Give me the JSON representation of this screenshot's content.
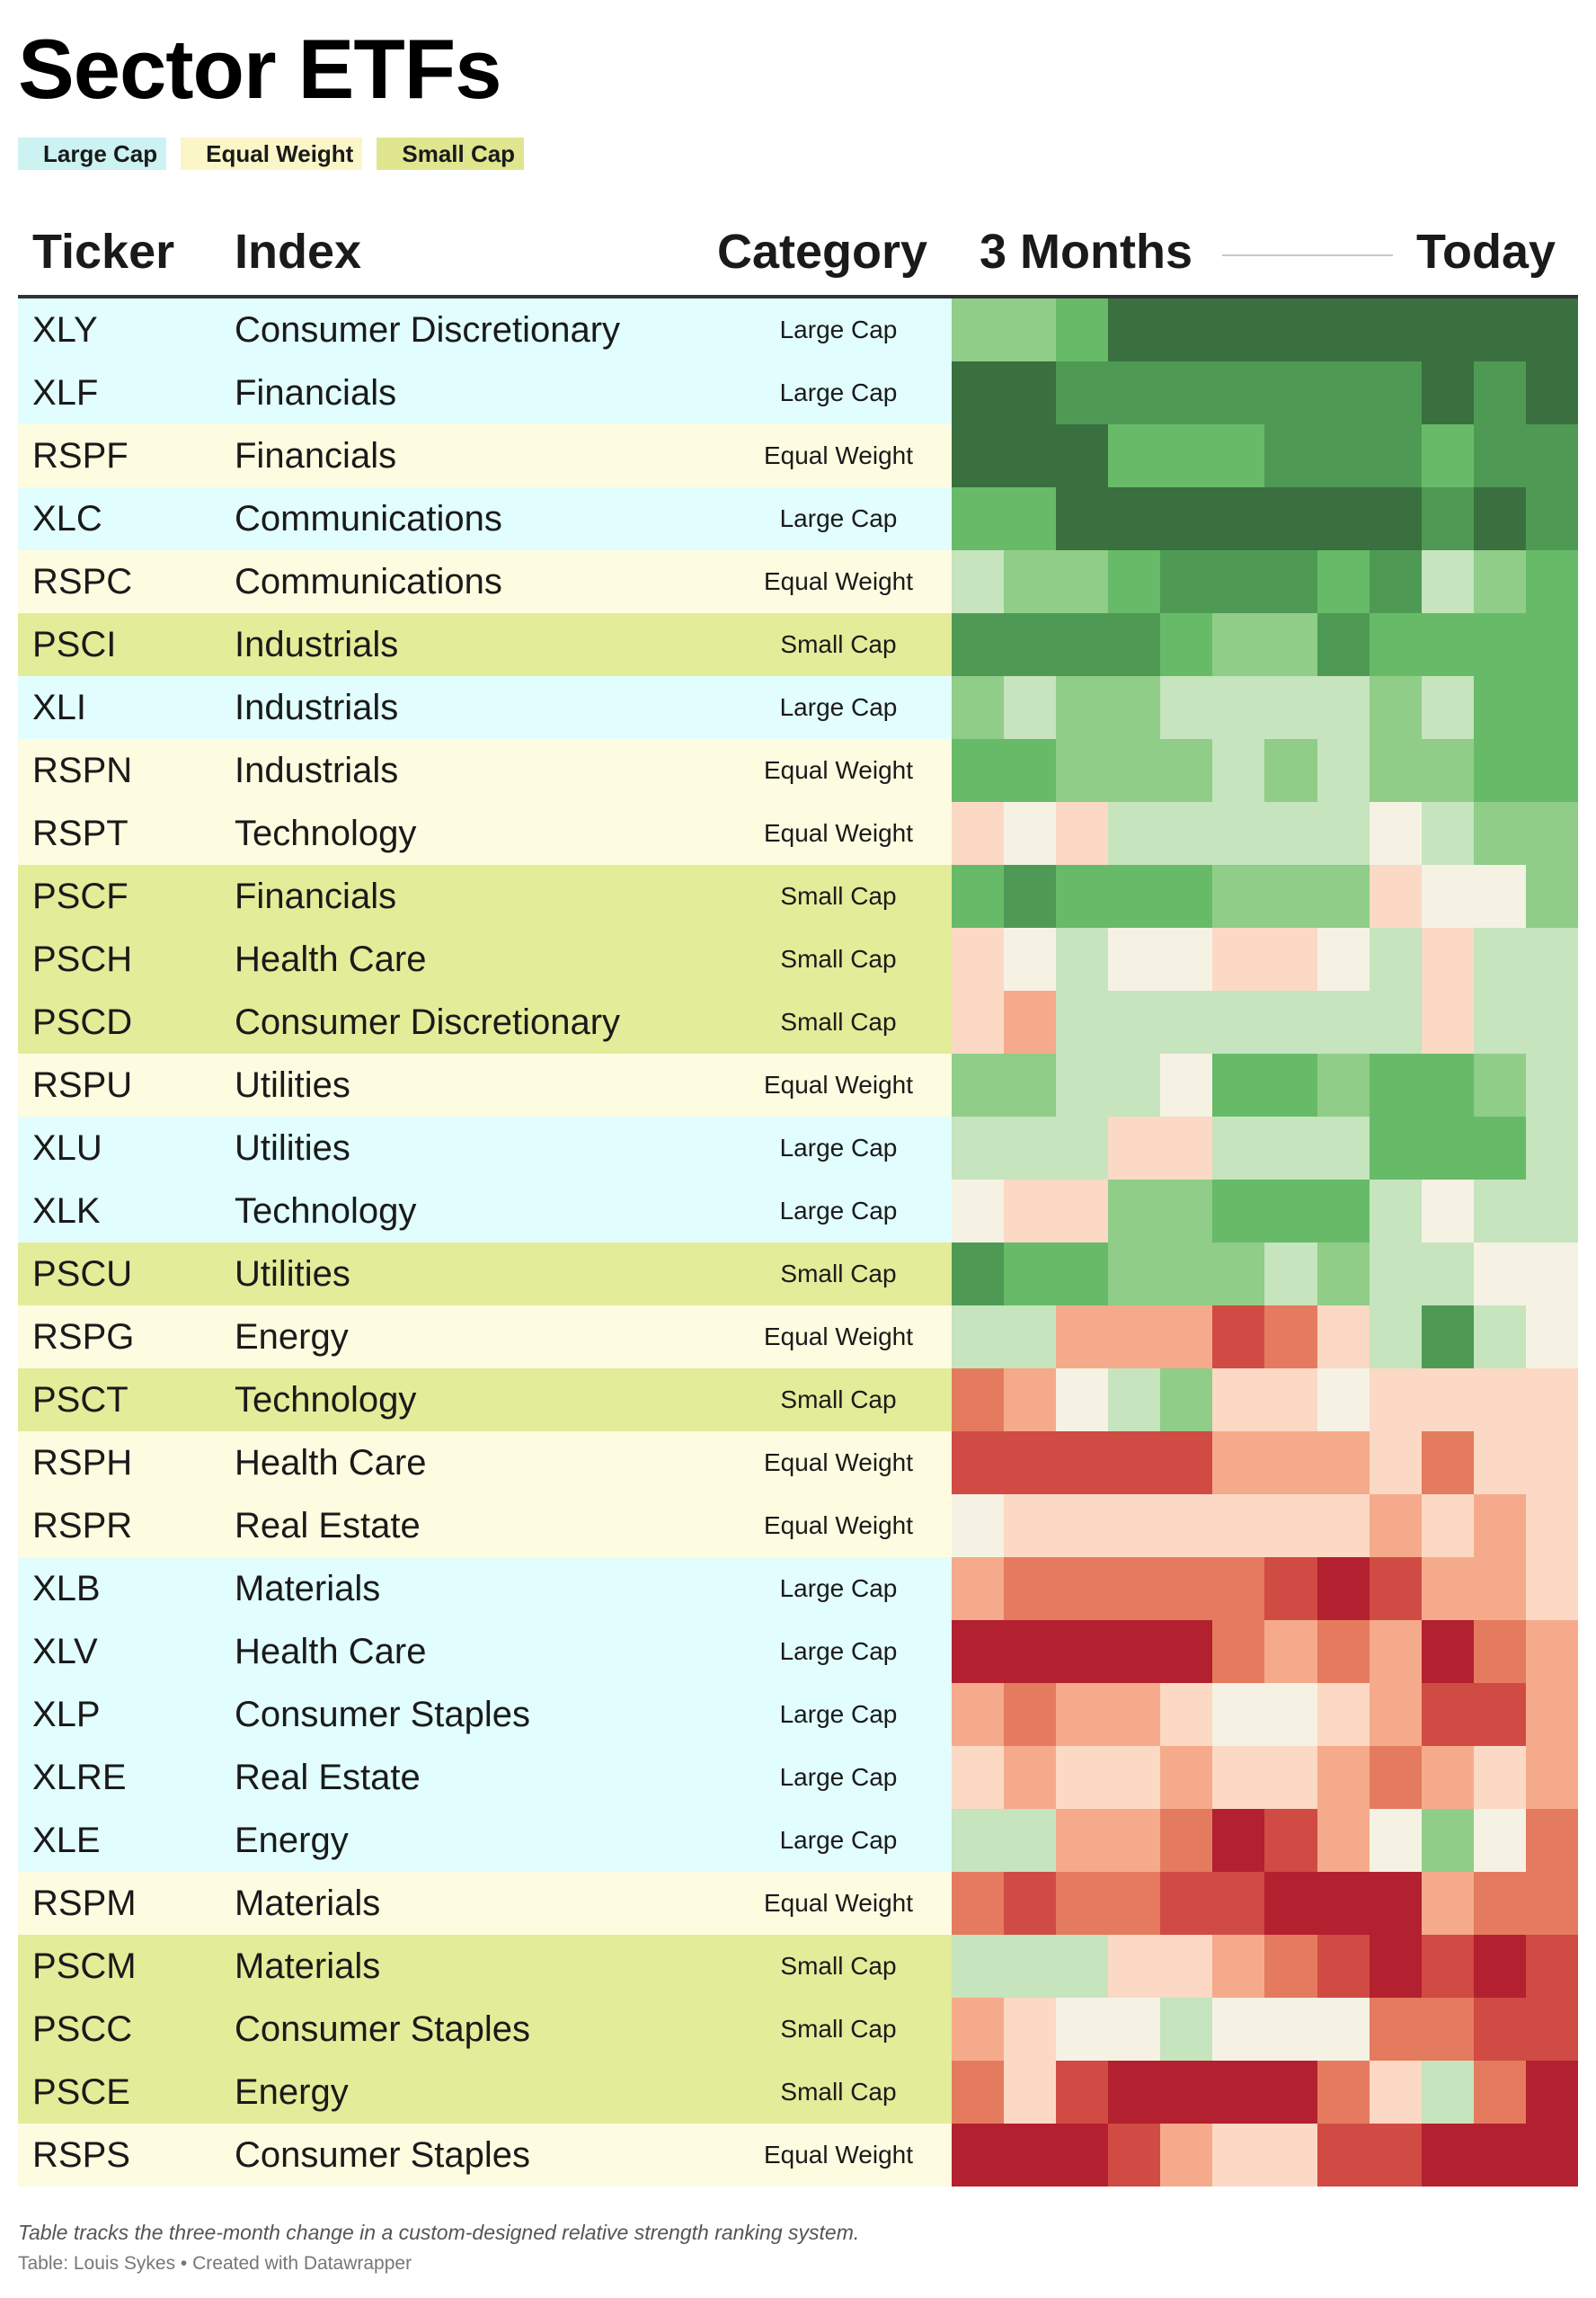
{
  "title": "Sector ETFs",
  "legend": [
    {
      "label": "Large Cap",
      "color": "#ccf2f2"
    },
    {
      "label": "Equal Weight",
      "color": "#fbf6c8"
    },
    {
      "label": "Small Cap",
      "color": "#dfe68f"
    }
  ],
  "category_colors": {
    "Large Cap": "#e1fdfd",
    "Equal Weight": "#fefce0",
    "Small Cap": "#e3ec99"
  },
  "header": {
    "ticker": "Ticker",
    "index": "Index",
    "category": "Category",
    "start": "3 Months",
    "end": "Today"
  },
  "palette": {
    "g4": "#3a6f40",
    "g3": "#4e9a54",
    "g2": "#67bb68",
    "g1": "#8fcd88",
    "g0": "#c6e4bd",
    "n": "#f5f2e4",
    "r0": "#fbd9c5",
    "r1": "#f5ab8b",
    "r2": "#e47b5e",
    "r3": "#d04b43",
    "r4": "#b3202f"
  },
  "rows": [
    {
      "ticker": "XLY",
      "index": "Consumer Discretionary",
      "category": "Large Cap",
      "heat": [
        "g1",
        "g1",
        "g2",
        "g4",
        "g4",
        "g4",
        "g4",
        "g4",
        "g4",
        "g4",
        "g4",
        "g4"
      ]
    },
    {
      "ticker": "XLF",
      "index": "Financials",
      "category": "Large Cap",
      "heat": [
        "g4",
        "g4",
        "g3",
        "g3",
        "g3",
        "g3",
        "g3",
        "g3",
        "g3",
        "g4",
        "g3",
        "g4"
      ]
    },
    {
      "ticker": "RSPF",
      "index": "Financials",
      "category": "Equal Weight",
      "heat": [
        "g4",
        "g4",
        "g4",
        "g2",
        "g2",
        "g2",
        "g3",
        "g3",
        "g3",
        "g2",
        "g3",
        "g3"
      ]
    },
    {
      "ticker": "XLC",
      "index": "Communications",
      "category": "Large Cap",
      "heat": [
        "g2",
        "g2",
        "g4",
        "g4",
        "g4",
        "g4",
        "g4",
        "g4",
        "g4",
        "g3",
        "g4",
        "g3"
      ]
    },
    {
      "ticker": "RSPC",
      "index": "Communications",
      "category": "Equal Weight",
      "heat": [
        "g0",
        "g1",
        "g1",
        "g2",
        "g3",
        "g3",
        "g3",
        "g2",
        "g3",
        "g0",
        "g1",
        "g2"
      ]
    },
    {
      "ticker": "PSCI",
      "index": "Industrials",
      "category": "Small Cap",
      "heat": [
        "g3",
        "g3",
        "g3",
        "g3",
        "g2",
        "g1",
        "g1",
        "g3",
        "g2",
        "g2",
        "g2",
        "g2"
      ]
    },
    {
      "ticker": "XLI",
      "index": "Industrials",
      "category": "Large Cap",
      "heat": [
        "g1",
        "g0",
        "g1",
        "g1",
        "g0",
        "g0",
        "g0",
        "g0",
        "g1",
        "g0",
        "g2",
        "g2"
      ]
    },
    {
      "ticker": "RSPN",
      "index": "Industrials",
      "category": "Equal Weight",
      "heat": [
        "g2",
        "g2",
        "g1",
        "g1",
        "g1",
        "g0",
        "g1",
        "g0",
        "g1",
        "g1",
        "g2",
        "g2"
      ]
    },
    {
      "ticker": "RSPT",
      "index": "Technology",
      "category": "Equal Weight",
      "heat": [
        "r0",
        "n",
        "r0",
        "g0",
        "g0",
        "g0",
        "g0",
        "g0",
        "n",
        "g0",
        "g1",
        "g1"
      ]
    },
    {
      "ticker": "PSCF",
      "index": "Financials",
      "category": "Small Cap",
      "heat": [
        "g2",
        "g3",
        "g2",
        "g2",
        "g2",
        "g1",
        "g1",
        "g1",
        "r0",
        "n",
        "n",
        "g1"
      ]
    },
    {
      "ticker": "PSCH",
      "index": "Health Care",
      "category": "Small Cap",
      "heat": [
        "r0",
        "n",
        "g0",
        "n",
        "n",
        "r0",
        "r0",
        "n",
        "g0",
        "r0",
        "g0",
        "g0"
      ]
    },
    {
      "ticker": "PSCD",
      "index": "Consumer Discretionary",
      "category": "Small Cap",
      "heat": [
        "r0",
        "r1",
        "g0",
        "g0",
        "g0",
        "g0",
        "g0",
        "g0",
        "g0",
        "r0",
        "g0",
        "g0"
      ]
    },
    {
      "ticker": "RSPU",
      "index": "Utilities",
      "category": "Equal Weight",
      "heat": [
        "g1",
        "g1",
        "g0",
        "g0",
        "n",
        "g2",
        "g2",
        "g1",
        "g2",
        "g2",
        "g1",
        "g0"
      ]
    },
    {
      "ticker": "XLU",
      "index": "Utilities",
      "category": "Large Cap",
      "heat": [
        "g0",
        "g0",
        "g0",
        "r0",
        "r0",
        "g0",
        "g0",
        "g0",
        "g2",
        "g2",
        "g2",
        "g0"
      ]
    },
    {
      "ticker": "XLK",
      "index": "Technology",
      "category": "Large Cap",
      "heat": [
        "n",
        "r0",
        "r0",
        "g1",
        "g1",
        "g2",
        "g2",
        "g2",
        "g0",
        "n",
        "g0",
        "g0"
      ]
    },
    {
      "ticker": "PSCU",
      "index": "Utilities",
      "category": "Small Cap",
      "heat": [
        "g3",
        "g2",
        "g2",
        "g1",
        "g1",
        "g1",
        "g0",
        "g1",
        "g0",
        "g0",
        "n",
        "n"
      ]
    },
    {
      "ticker": "RSPG",
      "index": "Energy",
      "category": "Equal Weight",
      "heat": [
        "g0",
        "g0",
        "r1",
        "r1",
        "r1",
        "r3",
        "r2",
        "r0",
        "g0",
        "g3",
        "g0",
        "n"
      ]
    },
    {
      "ticker": "PSCT",
      "index": "Technology",
      "category": "Small Cap",
      "heat": [
        "r2",
        "r1",
        "n",
        "g0",
        "g1",
        "r0",
        "r0",
        "n",
        "r0",
        "r0",
        "r0",
        "r0"
      ]
    },
    {
      "ticker": "RSPH",
      "index": "Health Care",
      "category": "Equal Weight",
      "heat": [
        "r3",
        "r3",
        "r3",
        "r3",
        "r3",
        "r1",
        "r1",
        "r1",
        "r0",
        "r2",
        "r0",
        "r0"
      ]
    },
    {
      "ticker": "RSPR",
      "index": "Real Estate",
      "category": "Equal Weight",
      "heat": [
        "n",
        "r0",
        "r0",
        "r0",
        "r0",
        "r0",
        "r0",
        "r0",
        "r1",
        "r0",
        "r1",
        "r0"
      ]
    },
    {
      "ticker": "XLB",
      "index": "Materials",
      "category": "Large Cap",
      "heat": [
        "r1",
        "r2",
        "r2",
        "r2",
        "r2",
        "r2",
        "r3",
        "r4",
        "r3",
        "r1",
        "r1",
        "r0"
      ]
    },
    {
      "ticker": "XLV",
      "index": "Health Care",
      "category": "Large Cap",
      "heat": [
        "r4",
        "r4",
        "r4",
        "r4",
        "r4",
        "r2",
        "r1",
        "r2",
        "r1",
        "r4",
        "r2",
        "r1"
      ]
    },
    {
      "ticker": "XLP",
      "index": "Consumer Staples",
      "category": "Large Cap",
      "heat": [
        "r1",
        "r2",
        "r1",
        "r1",
        "r0",
        "n",
        "n",
        "r0",
        "r1",
        "r3",
        "r3",
        "r1"
      ]
    },
    {
      "ticker": "XLRE",
      "index": "Real Estate",
      "category": "Large Cap",
      "heat": [
        "r0",
        "r1",
        "r0",
        "r0",
        "r1",
        "r0",
        "r0",
        "r1",
        "r2",
        "r1",
        "r0",
        "r1"
      ]
    },
    {
      "ticker": "XLE",
      "index": "Energy",
      "category": "Large Cap",
      "heat": [
        "g0",
        "g0",
        "r1",
        "r1",
        "r2",
        "r4",
        "r3",
        "r1",
        "n",
        "g1",
        "n",
        "r2"
      ]
    },
    {
      "ticker": "RSPM",
      "index": "Materials",
      "category": "Equal Weight",
      "heat": [
        "r2",
        "r3",
        "r2",
        "r2",
        "r3",
        "r3",
        "r4",
        "r4",
        "r4",
        "r1",
        "r2",
        "r2"
      ]
    },
    {
      "ticker": "PSCM",
      "index": "Materials",
      "category": "Small Cap",
      "heat": [
        "g0",
        "g0",
        "g0",
        "r0",
        "r0",
        "r1",
        "r2",
        "r3",
        "r4",
        "r3",
        "r4",
        "r3"
      ]
    },
    {
      "ticker": "PSCC",
      "index": "Consumer Staples",
      "category": "Small Cap",
      "heat": [
        "r1",
        "r0",
        "n",
        "n",
        "g0",
        "n",
        "n",
        "n",
        "r2",
        "r2",
        "r3",
        "r3"
      ]
    },
    {
      "ticker": "PSCE",
      "index": "Energy",
      "category": "Small Cap",
      "heat": [
        "r2",
        "r0",
        "r3",
        "r4",
        "r4",
        "r4",
        "r4",
        "r2",
        "r0",
        "g0",
        "r2",
        "r4"
      ]
    },
    {
      "ticker": "RSPS",
      "index": "Consumer Staples",
      "category": "Equal Weight",
      "heat": [
        "r4",
        "r4",
        "r4",
        "r3",
        "r1",
        "r0",
        "r0",
        "r3",
        "r3",
        "r4",
        "r4",
        "r4"
      ]
    }
  ],
  "footer": {
    "note": "Table tracks the three-month change in a custom-designed relative strength ranking system.",
    "credit": "Table: Louis Sykes • Created with Datawrapper"
  }
}
